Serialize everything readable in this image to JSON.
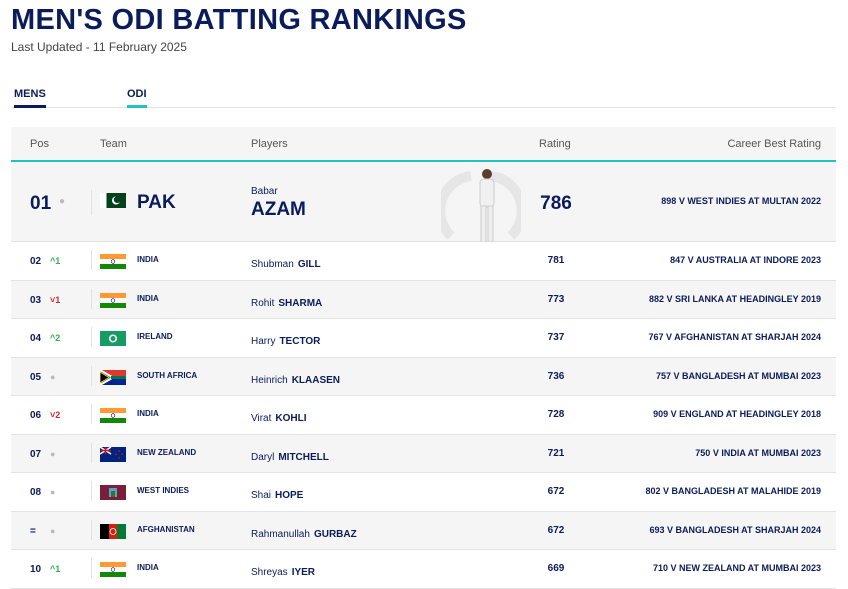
{
  "title": "MEN'S ODI BATTING RANKINGS",
  "last_updated": "Last Updated - 11 February 2025",
  "tabs": [
    {
      "label": "MENS"
    },
    {
      "label": "ODI"
    }
  ],
  "columns": {
    "pos": "Pos",
    "team": "Team",
    "players": "Players",
    "rating": "Rating",
    "best": "Career Best Rating"
  },
  "colors": {
    "navy": "#0b1c5a",
    "teal": "#1fc3c3",
    "up": "#2cb34a",
    "down": "#d62b2b"
  },
  "rows": [
    {
      "pos": "01",
      "change": "",
      "dir": "same",
      "team": "PAK",
      "first": "Babar",
      "last": "AZAM",
      "rating": "786",
      "best": "898 V WEST INDIES AT MULTAN 2022"
    },
    {
      "pos": "02",
      "change": "^1",
      "dir": "up",
      "team": "INDIA",
      "first": "Shubman",
      "last": "GILL",
      "rating": "781",
      "best": "847 V AUSTRALIA AT INDORE 2023"
    },
    {
      "pos": "03",
      "change": "˅1",
      "dir": "down",
      "team": "INDIA",
      "first": "Rohit",
      "last": "SHARMA",
      "rating": "773",
      "best": "882 V SRI LANKA AT HEADINGLEY 2019"
    },
    {
      "pos": "04",
      "change": "^2",
      "dir": "up",
      "team": "IRELAND",
      "first": "Harry",
      "last": "TECTOR",
      "rating": "737",
      "best": "767 V AFGHANISTAN AT SHARJAH 2024"
    },
    {
      "pos": "05",
      "change": "",
      "dir": "same",
      "team": "SOUTH AFRICA",
      "first": "Heinrich",
      "last": "KLAASEN",
      "rating": "736",
      "best": "757 V BANGLADESH AT MUMBAI 2023"
    },
    {
      "pos": "06",
      "change": "˅2",
      "dir": "down",
      "team": "INDIA",
      "first": "Virat",
      "last": "KOHLI",
      "rating": "728",
      "best": "909 V ENGLAND AT HEADINGLEY 2018"
    },
    {
      "pos": "07",
      "change": "",
      "dir": "same",
      "team": "NEW ZEALAND",
      "first": "Daryl",
      "last": "MITCHELL",
      "rating": "721",
      "best": "750 V INDIA AT MUMBAI 2023"
    },
    {
      "pos": "08",
      "change": "",
      "dir": "same",
      "team": "WEST INDIES",
      "first": "Shai",
      "last": "HOPE",
      "rating": "672",
      "best": "802 V BANGLADESH AT MALAHIDE 2019"
    },
    {
      "pos": "=",
      "change": "",
      "dir": "same",
      "team": "AFGHANISTAN",
      "first": "Rahmanullah",
      "last": "GURBAZ",
      "rating": "672",
      "best": "693 V BANGLADESH AT SHARJAH 2024"
    },
    {
      "pos": "10",
      "change": "^1",
      "dir": "up",
      "team": "INDIA",
      "first": "Shreyas",
      "last": "IYER",
      "rating": "669",
      "best": "710 V NEW ZEALAND AT MUMBAI 2023"
    }
  ]
}
